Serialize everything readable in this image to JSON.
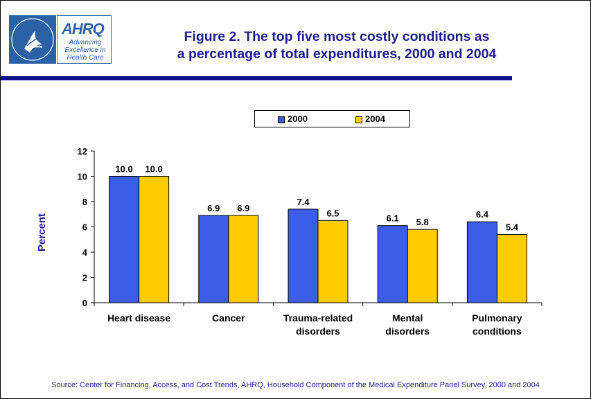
{
  "logo": {
    "brand": "AHRQ",
    "tagline": [
      "Advancing",
      "Excellence in",
      "Health Care"
    ],
    "seal_text": "DEPARTMENT OF HEALTH & HUMAN SERVICES USA"
  },
  "title_lines": [
    "Figure 2. The top five most costly conditions as",
    "a percentage of total expenditures, 2000 and 2004"
  ],
  "source": "Source: Center for Financing, Access, and Cost Trends, AHRQ, Household Component of the Medical Expenditure Panel Survey, 2000 and 2004",
  "colors": {
    "title": "#1c1c8c",
    "rule": "#0f0f8c",
    "series_2000": "#3b5de7",
    "series_2004": "#ffcc00"
  },
  "chart_data": {
    "type": "bar",
    "title": "Figure 2. The top five most costly conditions as a percentage of total expenditures, 2000 and 2004",
    "categories": [
      [
        "Heart disease"
      ],
      [
        "Cancer"
      ],
      [
        "Trauma-related",
        "disorders"
      ],
      [
        "Mental",
        "disorders"
      ],
      [
        "Pulmonary",
        "conditions"
      ]
    ],
    "series": [
      {
        "name": "2000",
        "values": [
          10.0,
          6.9,
          7.4,
          6.1,
          6.4
        ],
        "labels": [
          "10.0",
          "6.9",
          "7.4",
          "6.1",
          "6.4"
        ],
        "color": "#3b5de7"
      },
      {
        "name": "2004",
        "values": [
          10.0,
          6.9,
          6.5,
          5.8,
          5.4
        ],
        "labels": [
          "10.0",
          "6.9",
          "6.5",
          "5.8",
          "5.4"
        ],
        "color": "#ffcc00"
      }
    ],
    "xlabel": "",
    "ylabel": "Percent",
    "ylim": [
      0,
      12
    ],
    "yticks": [
      0,
      2,
      4,
      6,
      8,
      10,
      12
    ],
    "grid": false,
    "legend_position": "top-center"
  }
}
